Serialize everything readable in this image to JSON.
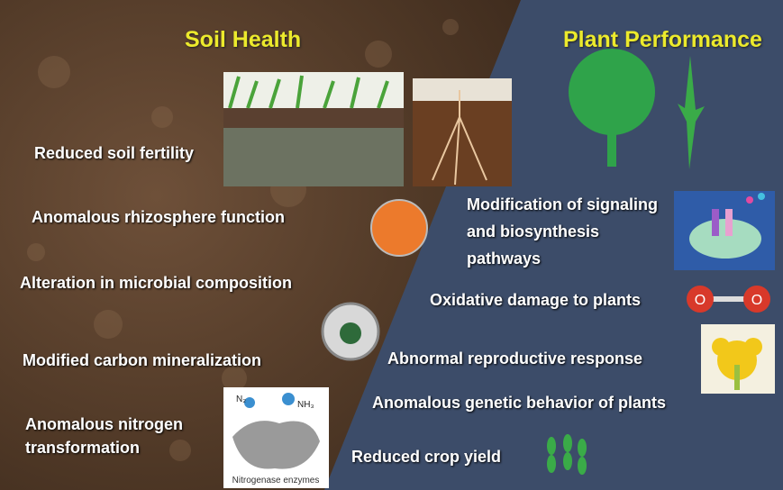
{
  "left": {
    "title": "Soil Health",
    "items": [
      "Reduced soil fertility",
      "Anomalous rhizosphere function",
      "Alteration in microbial composition",
      "Modified carbon mineralization",
      "Anomalous nitrogen transformation"
    ]
  },
  "right": {
    "title": "Plant Performance",
    "items": [
      "Modification of signaling and biosynthesis pathways",
      "Oxidative damage to plants",
      "Abnormal reproductive response",
      "Anomalous genetic behavior of plants",
      "Reduced crop yield"
    ]
  },
  "nitrogenase": {
    "n2": "N₂",
    "nh3": "NH₃",
    "caption": "Nitrogenase enzymes"
  },
  "oxygen": {
    "left": "O",
    "right": "O"
  }
}
